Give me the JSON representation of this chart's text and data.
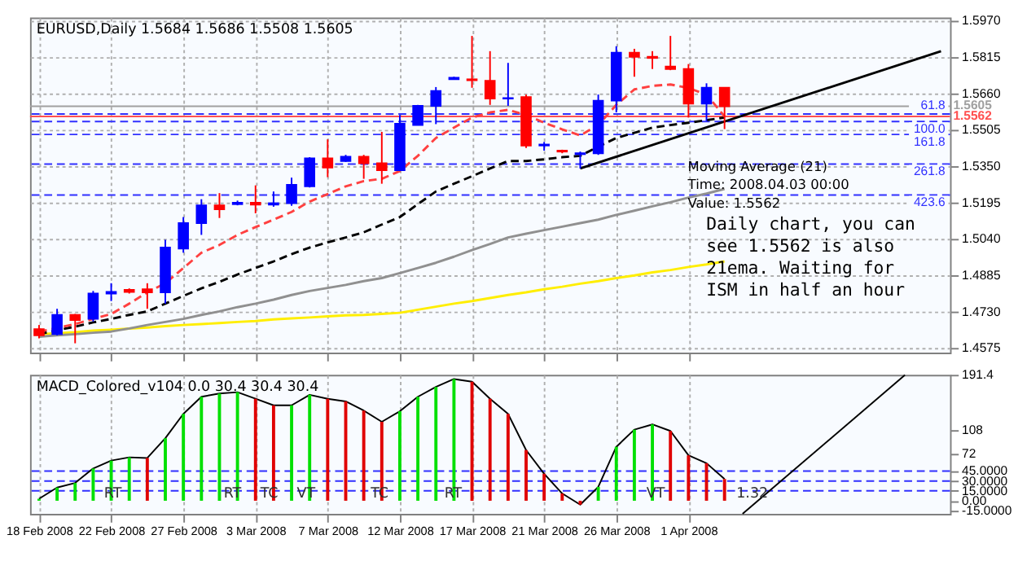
{
  "chart_data": [
    {
      "type": "candlestick",
      "title": "EURUSD,Daily  1.5684 1.5686 1.5508 1.5605",
      "ohlc": [
        [
          1.4655,
          1.4673,
          1.4616,
          1.4629
        ],
        [
          1.4634,
          1.4742,
          1.4629,
          1.4716
        ],
        [
          1.4716,
          1.472,
          1.4595,
          1.4694
        ],
        [
          1.4699,
          1.4818,
          1.4688,
          1.4807
        ],
        [
          1.4807,
          1.4851,
          1.4775,
          1.4814
        ],
        [
          1.4823,
          1.4829,
          1.4807,
          1.4814
        ],
        [
          1.4825,
          1.4851,
          1.4742,
          1.4812
        ],
        [
          1.4812,
          1.5036,
          1.4764,
          1.5003
        ],
        [
          1.4999,
          1.5133,
          1.4981,
          1.5107
        ],
        [
          1.5107,
          1.5209,
          1.5057,
          1.5183
        ],
        [
          1.5183,
          1.5235,
          1.5129,
          1.5166
        ],
        [
          1.5188,
          1.5203,
          1.5183,
          1.5194
        ],
        [
          1.5194,
          1.5268,
          1.5149,
          1.5186
        ],
        [
          1.5186,
          1.5242,
          1.5177,
          1.5192
        ],
        [
          1.5192,
          1.5301,
          1.5181,
          1.527
        ],
        [
          1.5264,
          1.5388,
          1.5259,
          1.5383
        ],
        [
          1.5383,
          1.5464,
          1.5303,
          1.5344
        ],
        [
          1.5372,
          1.5398,
          1.5368,
          1.539
        ],
        [
          1.539,
          1.5398,
          1.5296,
          1.5362
        ],
        [
          1.5362,
          1.5496,
          1.5275,
          1.5333
        ],
        [
          1.5333,
          1.5568,
          1.5329,
          1.5531
        ],
        [
          1.5525,
          1.5611,
          1.5525,
          1.5607
        ],
        [
          1.5607,
          1.5687,
          1.5529,
          1.567
        ],
        [
          1.572,
          1.5731,
          1.572,
          1.5727
        ],
        [
          1.572,
          1.5905,
          1.5684,
          1.5716
        ],
        [
          1.5714,
          1.584,
          1.5611,
          1.5638
        ],
        [
          1.5638,
          1.579,
          1.5607,
          1.564
        ],
        [
          1.5644,
          1.5655,
          1.5427,
          1.5438
        ],
        [
          1.5438,
          1.5453,
          1.5416,
          1.5442
        ],
        [
          1.5416,
          1.542,
          1.5405,
          1.5412
        ],
        [
          1.5401,
          1.5412,
          1.534,
          1.5405
        ],
        [
          1.5405,
          1.5655,
          1.5398,
          1.5629
        ],
        [
          1.5629,
          1.5861,
          1.5579,
          1.5833
        ],
        [
          1.5833,
          1.585,
          1.5731,
          1.5816
        ],
        [
          1.5816,
          1.584,
          1.5764,
          1.5811
        ],
        [
          1.5774,
          1.5905,
          1.5759,
          1.5764
        ],
        [
          1.5764,
          1.5785,
          1.5557,
          1.5616
        ],
        [
          1.5616,
          1.5703,
          1.5542,
          1.5684
        ],
        [
          1.5684,
          1.5686,
          1.5508,
          1.5605
        ],
        null,
        null,
        null,
        null,
        null,
        null,
        null,
        null,
        null,
        null,
        null,
        null
      ],
      "colors": [
        "#ff0000",
        "#0000ff",
        "#ff0000",
        "#0000ff",
        "#0000ff",
        "#ff0000",
        "#ff0000",
        "#0000ff",
        "#0000ff",
        "#0000ff",
        "#ff0000",
        "#0000ff",
        "#ff0000",
        "#0000ff",
        "#0000ff",
        "#0000ff",
        "#ff0000",
        "#0000ff",
        "#ff0000",
        "#ff0000",
        "#0000ff",
        "#0000ff",
        "#0000ff",
        "#0000ff",
        "#ff0000",
        "#ff0000",
        "#0000ff",
        "#ff0000",
        "#0000ff",
        "#ff0000",
        "#0000ff",
        "#0000ff",
        "#0000ff",
        "#ff0000",
        "#ff0000",
        "#ff0000",
        "#ff0000",
        "#0000ff",
        "#ff0000",
        null,
        null,
        null,
        null,
        null,
        null,
        null,
        null,
        null,
        null,
        null,
        null
      ],
      "series": [
        {
          "type": "line",
          "color": "#ffee00",
          "line_style": "solid",
          "values": [
            1.4634,
            1.4638,
            1.4642,
            1.4649,
            1.4653,
            1.4658,
            1.4662,
            1.4668,
            1.4673,
            1.4677,
            1.4681,
            1.4686,
            1.469,
            1.4697,
            1.4701,
            1.4705,
            1.471,
            1.4714,
            1.4716,
            1.472,
            1.4725,
            1.4738,
            1.4751,
            1.4764,
            1.4775,
            1.4788,
            1.4801,
            1.4812,
            1.4825,
            1.4836,
            1.4849,
            1.486,
            1.4873,
            1.4884,
            1.4897,
            1.4907,
            1.492,
            1.4931,
            1.4944,
            null,
            null,
            null,
            null,
            null,
            null,
            null,
            null,
            null,
            null,
            null,
            null
          ]
        },
        {
          "type": "line",
          "color": "#909090",
          "line_style": "solid",
          "values": [
            1.4623,
            1.4629,
            1.4634,
            1.464,
            1.4645,
            1.4658,
            1.4673,
            1.4686,
            1.4699,
            1.4716,
            1.4731,
            1.4749,
            1.4764,
            1.4781,
            1.4801,
            1.4818,
            1.4831,
            1.4844,
            1.486,
            1.4873,
            1.4894,
            1.4916,
            1.4938,
            1.4964,
            1.4992,
            1.5018,
            1.5046,
            1.5062,
            1.5077,
            1.5092,
            1.5107,
            1.5122,
            1.5142,
            1.516,
            1.5179,
            1.5196,
            1.5216,
            1.5233,
            1.5253,
            null,
            null,
            null,
            null,
            null,
            null,
            null,
            null,
            null,
            null,
            null,
            null
          ]
        },
        {
          "type": "line",
          "color": "#000000",
          "line_style": "dashed",
          "values": [
            1.4634,
            1.4651,
            1.4666,
            1.4684,
            1.4699,
            1.4716,
            1.4731,
            1.4764,
            1.4797,
            1.4829,
            1.4857,
            1.4888,
            1.4916,
            1.4944,
            1.4975,
            1.5003,
            1.5025,
            1.5046,
            1.5068,
            1.5101,
            1.5133,
            1.5188,
            1.5242,
            1.5275,
            1.5307,
            1.534,
            1.5372,
            1.5372,
            1.5379,
            1.5388,
            1.5394,
            1.5433,
            1.547,
            1.5492,
            1.5514,
            1.5525,
            1.5535,
            1.5546,
            1.5557,
            null,
            null,
            null,
            null,
            null,
            null,
            null,
            null,
            null,
            null,
            null,
            null
          ]
        },
        {
          "type": "line",
          "color": "#ff4040",
          "line_style": "dashed",
          "values": [
            1.4645,
            1.466,
            1.4677,
            1.4699,
            1.472,
            1.4764,
            1.4812,
            1.4851,
            1.4916,
            1.4981,
            1.5014,
            1.5057,
            1.509,
            1.5122,
            1.5155,
            1.5199,
            1.5231,
            1.5264,
            1.5286,
            1.5296,
            1.5329,
            1.5394,
            1.547,
            1.5514,
            1.5557,
            1.5579,
            1.559,
            1.5568,
            1.5535,
            1.5507,
            1.5481,
            1.5525,
            1.5611,
            1.5677,
            1.5692,
            1.5698,
            1.5683,
            1.5655,
            1.5562,
            null,
            null,
            null,
            null,
            null,
            null,
            null,
            null,
            null,
            null,
            null,
            null
          ]
        },
        {
          "type": "line",
          "color": "#000000",
          "line_style": "solid",
          "values": [
            null,
            null,
            null,
            null,
            null,
            null,
            null,
            null,
            null,
            null,
            null,
            null,
            null,
            null,
            null,
            null,
            null,
            null,
            null,
            null,
            null,
            null,
            null,
            null,
            null,
            null,
            null,
            null,
            null,
            null,
            1.534,
            null,
            null,
            null,
            null,
            null,
            null,
            null,
            null,
            null,
            null,
            null,
            null,
            null,
            null,
            null,
            null,
            null,
            null,
            null,
            1.584
          ]
        }
      ],
      "ylim": [
        1.4555,
        1.5983
      ],
      "yticks": [
        {
          "value": 1.4575,
          "label": "1.4575"
        },
        {
          "value": 1.473,
          "label": "1.4730"
        },
        {
          "value": 1.4885,
          "label": "1.4885"
        },
        {
          "value": 1.504,
          "label": "1.5040"
        },
        {
          "value": 1.5195,
          "label": "1.5195"
        },
        {
          "value": 1.535,
          "label": "1.5350"
        },
        {
          "value": 1.5505,
          "label": "1.5505"
        },
        {
          "value": 1.566,
          "label": "1.5660"
        },
        {
          "value": 1.5815,
          "label": "1.5815"
        },
        {
          "value": 1.597,
          "label": "1.5970"
        }
      ],
      "ref_lines": [
        {
          "axis": "y",
          "value": 1.5605,
          "label": "1.5605",
          "color": "#a0a0a0",
          "line_style": "solid"
        },
        {
          "axis": "y",
          "value": 1.5562,
          "label": "1.5562",
          "color": "#ff5050",
          "line_style": "solid"
        },
        {
          "axis": "y",
          "value": 1.5572,
          "color": "#3030ff",
          "line_style": "dashed"
        },
        {
          "axis": "y",
          "value": 1.554,
          "color": "#3030ff",
          "line_style": "dashed"
        },
        {
          "axis": "y",
          "value": 1.5485,
          "color": "#3030ff",
          "line_style": "dashed"
        },
        {
          "axis": "y",
          "value": 1.5359,
          "color": "#3030ff",
          "line_style": "dashed"
        },
        {
          "axis": "y",
          "value": 1.5227,
          "color": "#3030ff",
          "line_style": "dashed"
        }
      ],
      "annotations": [
        "Moving Average (21)\nTime: 2008.04.03 00:00\nValue: 1.5562",
        "Daily chart, you can see 1.5562 is also 21ema. Waiting for ISM in half an hour",
        {
          "text": "61.8",
          "y": 1.5572
        },
        {
          "text": "100.0",
          "y": 1.554
        },
        {
          "text": "161.8",
          "y": 1.5485
        },
        {
          "text": "261.8",
          "y": 1.5359
        },
        {
          "text": "423.6",
          "y": 1.5227
        }
      ],
      "grid": true,
      "tick_labels": "y"
    },
    {
      "type": "bar",
      "title": "MACD_Colored_v104 0.0 30.4 30.4 30.4",
      "categories": [
        "18 Feb 2008",
        null,
        null,
        null,
        "22 Feb 2008",
        null,
        null,
        null,
        "27 Feb 2008",
        null,
        null,
        null,
        "3 Mar 2008",
        null,
        null,
        null,
        "7 Mar 2008",
        null,
        null,
        null,
        "12 Mar 2008",
        null,
        null,
        null,
        "17 Mar 2008",
        null,
        null,
        null,
        "21 Mar 2008",
        null,
        null,
        null,
        "26 Mar 2008",
        null,
        null,
        null,
        "1 Apr 2008",
        null,
        null,
        null,
        null,
        null,
        null,
        null,
        null,
        null,
        null,
        null,
        null,
        null,
        null
      ],
      "series": [
        {
          "type": "bar",
          "colors": [
            "#00e000",
            "#00e000",
            "#00e000",
            "#00e000",
            "#00e000",
            "#00e000",
            "#e00000",
            "#00e000",
            "#00e000",
            "#00e000",
            "#00e000",
            "#00e000",
            "#e00000",
            "#e00000",
            "#00e000",
            "#00e000",
            "#e00000",
            "#e00000",
            "#e00000",
            "#e00000",
            "#00e000",
            "#00e000",
            "#00e000",
            "#00e000",
            "#e00000",
            "#e00000",
            "#e00000",
            "#e00000",
            "#e00000",
            "#e00000",
            "#e00000",
            "#00e000",
            "#00e000",
            "#00e000",
            "#00e000",
            "#e00000",
            "#e00000",
            "#e00000",
            "#e00000",
            null,
            null,
            null,
            null,
            null,
            null,
            null,
            null,
            null,
            null,
            null,
            null
          ],
          "values": [
            3,
            20,
            27,
            49,
            61,
            66,
            65,
            95,
            132,
            158,
            163,
            165,
            155,
            145,
            145,
            161,
            155,
            151,
            137,
            120,
            136,
            158,
            173,
            185,
            181,
            155,
            132,
            77,
            41,
            11,
            -6,
            21,
            82,
            108,
            116,
            106,
            69,
            57,
            33,
            null,
            null,
            null,
            null,
            null,
            null,
            null,
            null,
            null,
            null,
            null,
            null
          ]
        },
        {
          "type": "line",
          "color": "#000000",
          "values": [
            3,
            20,
            27,
            49,
            61,
            66,
            65,
            95,
            132,
            158,
            163,
            165,
            155,
            145,
            145,
            161,
            155,
            151,
            137,
            120,
            136,
            158,
            173,
            185,
            181,
            155,
            132,
            77,
            41,
            11,
            -6,
            21,
            82,
            108,
            116,
            106,
            69,
            57,
            33,
            null,
            null,
            null,
            null,
            null,
            null,
            null,
            null,
            null,
            null,
            null,
            null
          ]
        },
        {
          "type": "line",
          "color": "#000000",
          "values": [
            null,
            null,
            null,
            null,
            null,
            null,
            null,
            null,
            null,
            null,
            null,
            null,
            null,
            null,
            null,
            null,
            null,
            null,
            null,
            null,
            null,
            null,
            null,
            null,
            null,
            null,
            null,
            null,
            null,
            null,
            null,
            null,
            null,
            null,
            null,
            null,
            null,
            null,
            null,
            -20,
            null,
            null,
            null,
            null,
            null,
            null,
            null,
            null,
            191,
            null,
            null
          ]
        }
      ],
      "ylim": [
        -20,
        191.4
      ],
      "yticks": [
        {
          "value": 191.4,
          "label": "191.4"
        },
        108,
        72,
        {
          "value": 45,
          "label": "45.0000"
        },
        {
          "value": 30,
          "label": "30.0000"
        },
        {
          "value": 15,
          "label": "15.0000"
        },
        {
          "value": 0,
          "label": "0.00"
        },
        {
          "value": -15,
          "label": "-15.0000"
        }
      ],
      "ref_lines": [
        {
          "axis": "y",
          "value": 45,
          "color": "#3030ff",
          "line_style": "dashed"
        },
        {
          "axis": "y",
          "value": 30,
          "color": "#3030ff",
          "line_style": "dashed"
        },
        {
          "axis": "y",
          "value": 15,
          "color": "#3030ff",
          "line_style": "dashed"
        }
      ],
      "annotations": [
        "RT",
        "RT",
        "TC",
        "VT",
        "TC",
        "RT",
        "VT",
        "1.32"
      ],
      "grid": "x"
    }
  ]
}
